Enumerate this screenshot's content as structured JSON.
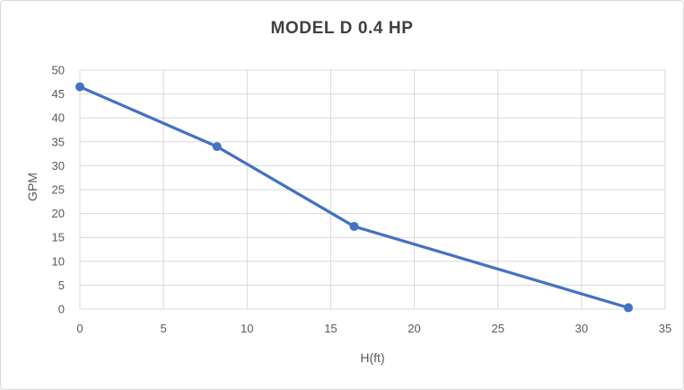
{
  "chart_data": {
    "type": "line",
    "title": "MODEL D 0.4 HP",
    "xlabel": "H(ft)",
    "ylabel": "GPM",
    "x": [
      0,
      8.2,
      16.4,
      32.8
    ],
    "y": [
      46.5,
      34,
      17.3,
      0.3
    ],
    "xlim": [
      0,
      35
    ],
    "ylim": [
      0,
      50
    ],
    "xticks": [
      0,
      5,
      10,
      15,
      20,
      25,
      30,
      35
    ],
    "yticks": [
      0,
      5,
      10,
      15,
      20,
      25,
      30,
      35,
      40,
      45,
      50
    ],
    "grid": true,
    "legend": "none",
    "marker": "circle",
    "colors": {
      "line": "#4472C4",
      "marker": "#4472C4",
      "grid": "#D9D9D9",
      "axis_text": "#595959",
      "title_text": "#404040",
      "frame_border": "#D9D9D9",
      "background": "#FFFFFF"
    }
  }
}
